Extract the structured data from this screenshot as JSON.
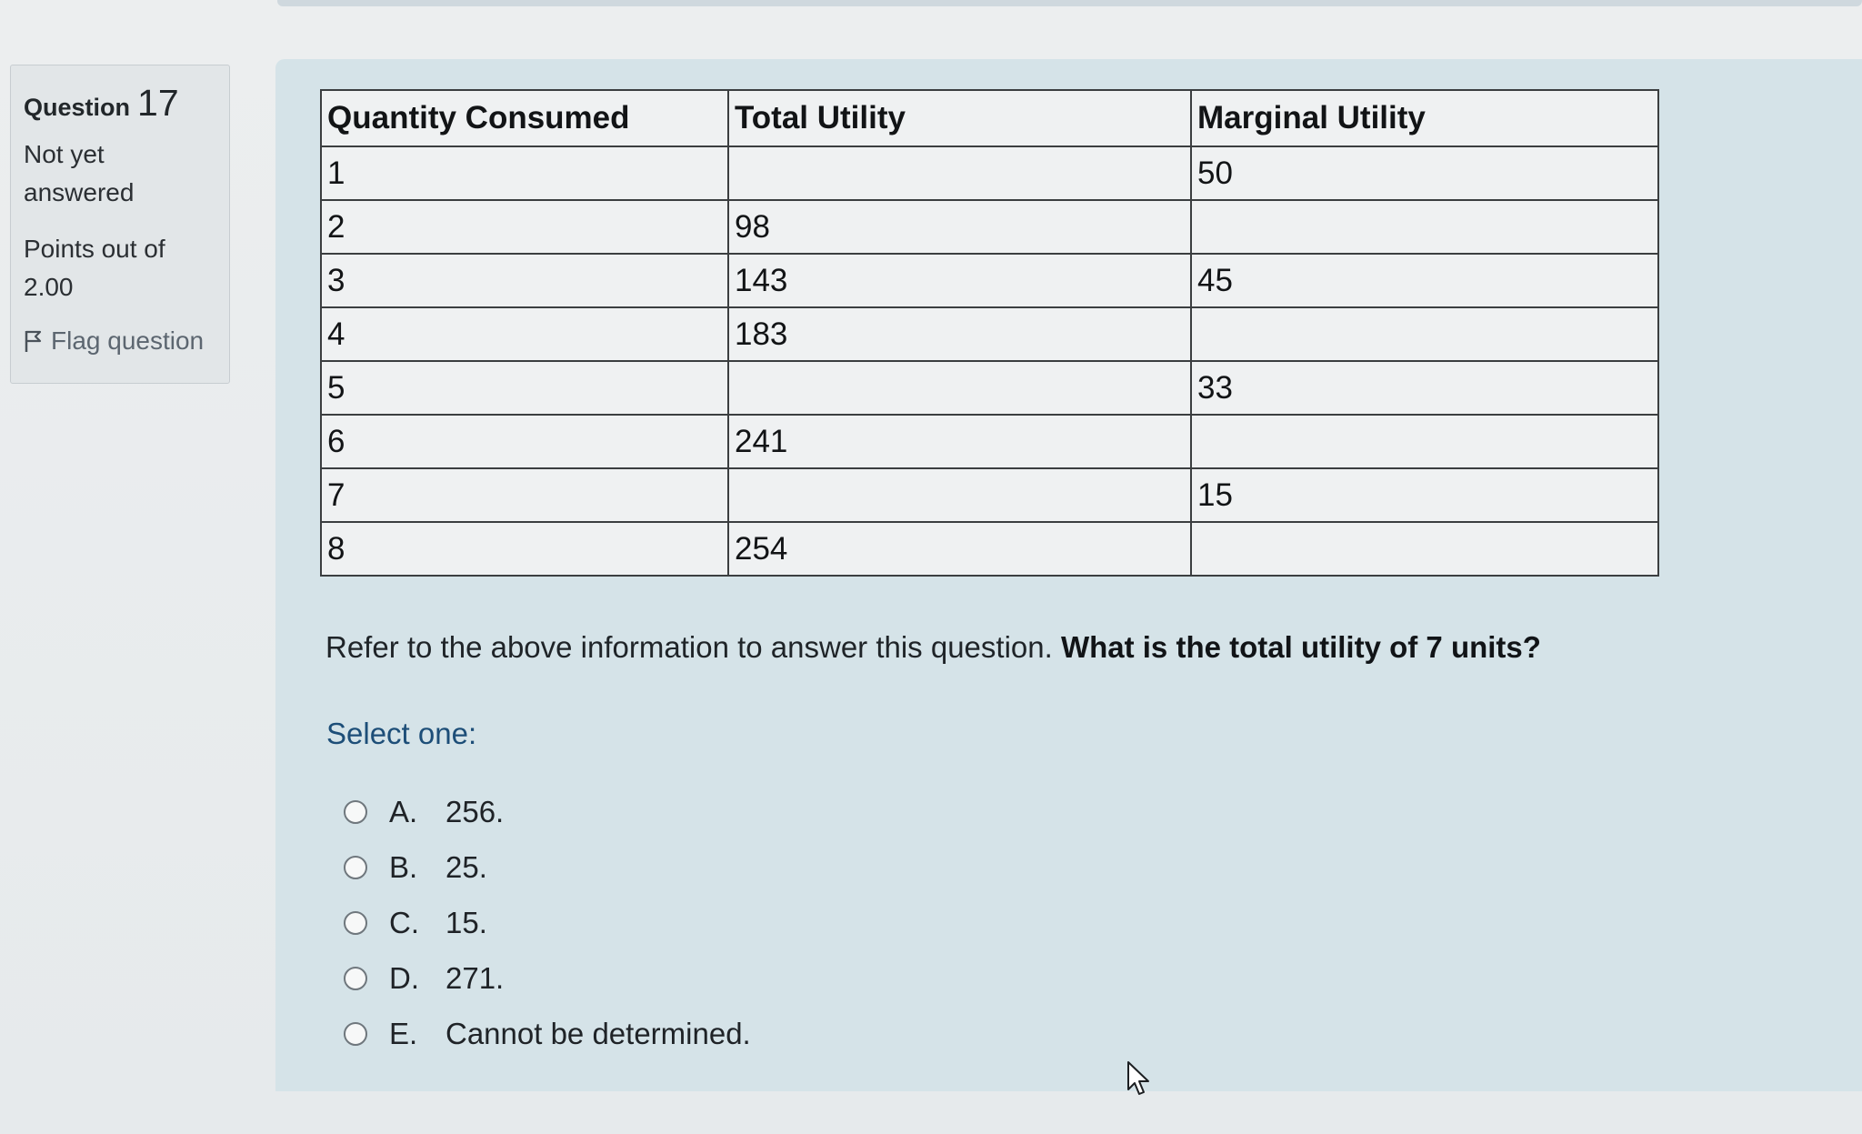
{
  "question": {
    "word": "Question",
    "number": "17",
    "status": "Not yet answered",
    "points": "Points out of 2.00",
    "flag_label": "Flag question"
  },
  "table": {
    "headers": [
      "Quantity Consumed",
      "Total Utility",
      "Marginal Utility"
    ],
    "rows": [
      [
        "1",
        "",
        "50"
      ],
      [
        "2",
        "98",
        ""
      ],
      [
        "3",
        "143",
        "45"
      ],
      [
        "4",
        "183",
        ""
      ],
      [
        "5",
        "",
        "33"
      ],
      [
        "6",
        "241",
        ""
      ],
      [
        "7",
        "",
        "15"
      ],
      [
        "8",
        "254",
        ""
      ]
    ]
  },
  "prompt": {
    "intro": "Refer to the above information to answer this question. ",
    "bold": "What is the total utility of 7 units?"
  },
  "select_label": "Select one:",
  "options": [
    {
      "letter": "A.",
      "text": "256."
    },
    {
      "letter": "B.",
      "text": "25."
    },
    {
      "letter": "C.",
      "text": "15."
    },
    {
      "letter": "D.",
      "text": "271."
    },
    {
      "letter": "E.",
      "text": "Cannot be determined."
    }
  ],
  "icons": {
    "flag": "flag-icon",
    "cursor": "mouse-pointer-icon",
    "radio": "radio-unchecked-icon"
  },
  "colors": {
    "content_bg": "#d5e3e8",
    "select_label": "#1d4e78",
    "flag_text": "#5c6670"
  }
}
